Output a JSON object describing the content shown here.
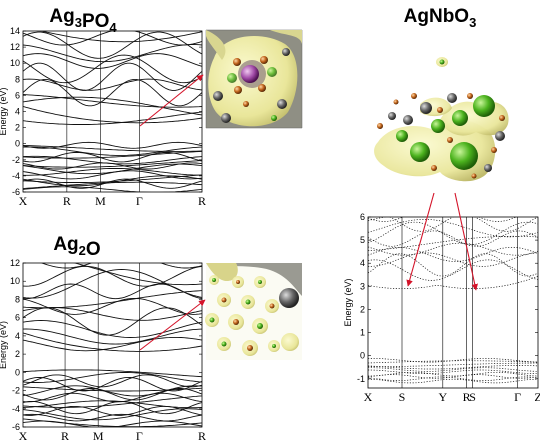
{
  "chart_data": [
    {
      "type": "line",
      "title": "Ag3PO4",
      "title_parts": [
        {
          "t": "Ag",
          "sub": false
        },
        {
          "t": "3",
          "sub": true
        },
        {
          "t": "PO",
          "sub": false
        },
        {
          "t": "4",
          "sub": true
        }
      ],
      "ylabel": "Energy (eV)",
      "ylim": [
        -6,
        14
      ],
      "yticks": [
        -6,
        -4,
        -2,
        0,
        2,
        4,
        6,
        8,
        10,
        12,
        14
      ],
      "kpath": [
        "X",
        "R",
        "M",
        "Γ",
        "R"
      ],
      "band_gap_min_eV": 2.6,
      "valence_range_eV": [
        -6,
        0
      ],
      "conduction_range_eV": [
        2.6,
        14
      ],
      "inset": {
        "kind": "orbital density isosurface",
        "at": "Γ"
      }
    },
    {
      "type": "line",
      "title": "Ag2O",
      "title_parts": [
        {
          "t": "Ag",
          "sub": false
        },
        {
          "t": "2",
          "sub": true
        },
        {
          "t": "O",
          "sub": false
        }
      ],
      "ylabel": "Energy (eV)",
      "ylim": [
        -6,
        12
      ],
      "yticks": [
        -6,
        -4,
        -2,
        0,
        2,
        4,
        6,
        8,
        10,
        12
      ],
      "kpath": [
        "X",
        "R",
        "M",
        "Γ",
        "R"
      ],
      "band_gap_min_eV": 2.3,
      "valence_range_eV": [
        -6,
        0
      ],
      "conduction_range_eV": [
        2.3,
        12
      ],
      "inset": {
        "kind": "orbital density isosurface",
        "at": "Γ"
      }
    },
    {
      "type": "line",
      "title": "AgNbO3",
      "title_parts": [
        {
          "t": "AgNbO",
          "sub": false
        },
        {
          "t": "3",
          "sub": true
        }
      ],
      "ylabel": "Energy (eV)",
      "ylim": [
        -1.4,
        6
      ],
      "yticks": [
        -1,
        0,
        1,
        2,
        3,
        4,
        5,
        6
      ],
      "kpath": [
        "X",
        "S",
        "Y",
        "R",
        "S",
        "Γ",
        "Z"
      ],
      "band_gap_min_eV": 2.9,
      "valence_range_eV": [
        -1.4,
        0
      ],
      "conduction_range_eV": [
        2.9,
        6
      ],
      "inset": {
        "kind": "orbital density isosurface",
        "at": [
          "S",
          "S"
        ]
      }
    }
  ],
  "icons": {
    "arrow": "red-arrow-icon",
    "inset": "orbital-isosurface-icon"
  },
  "colors": {
    "bands": "#111111",
    "arrow": "#d4142a",
    "isosurface": "#e9e69a",
    "atom_green": "#4cb31e",
    "atom_orange": "#c2651c",
    "atom_gray": "#555555"
  }
}
